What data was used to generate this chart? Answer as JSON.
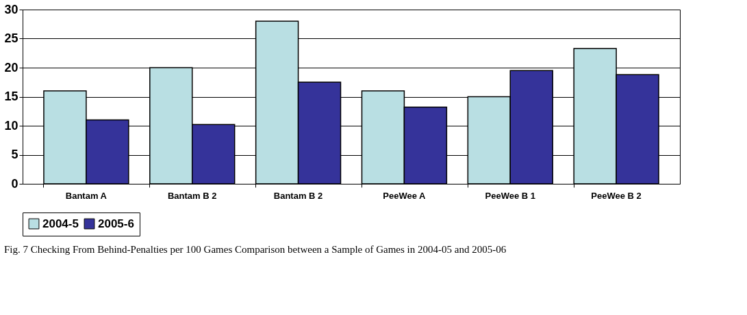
{
  "chart_data": {
    "type": "bar",
    "categories": [
      "Bantam A",
      "Bantam B 2",
      "Bantam B 2",
      "PeeWee A",
      "PeeWee B 1",
      "PeeWee B 2"
    ],
    "series": [
      {
        "name": "2004-5",
        "color": "#b9dfe3",
        "values": [
          16,
          20,
          28,
          16,
          15,
          23.3
        ]
      },
      {
        "name": "2005-6",
        "color": "#35339a",
        "values": [
          11,
          10.2,
          17.5,
          13.2,
          19.5,
          18.8
        ]
      }
    ],
    "ylim": [
      0,
      30
    ],
    "yticks": [
      0,
      5,
      10,
      15,
      20,
      25,
      30
    ],
    "grid": "y",
    "legend": "bottom",
    "annotations": [
      "Fig. 7 Checking From Behind-Penalties per 100 Games Comparison between a Sample of Games in 2004-05 and 2005-06"
    ]
  }
}
